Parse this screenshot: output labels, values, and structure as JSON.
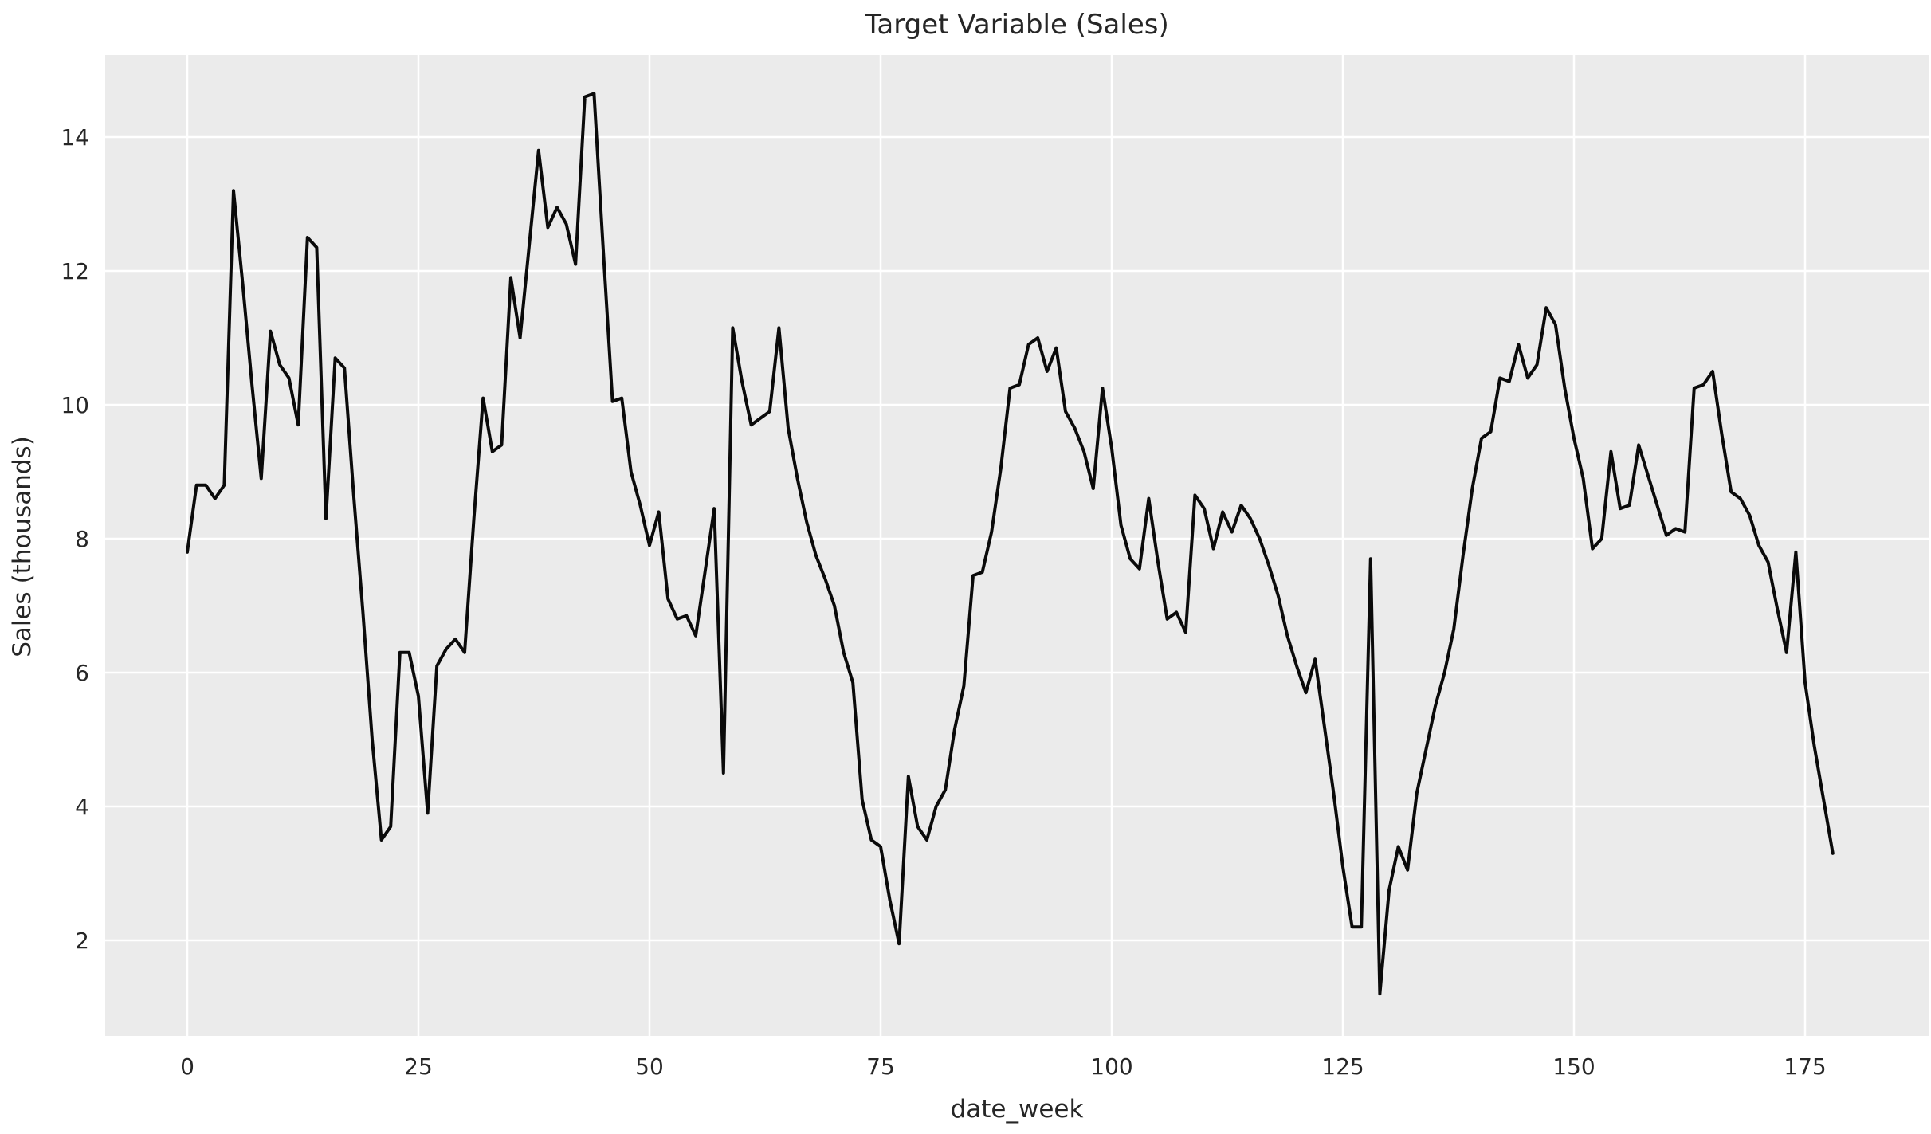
{
  "chart_data": {
    "type": "line",
    "title": "Target Variable (Sales)",
    "xlabel": "date_week",
    "ylabel": "Sales (thousands)",
    "legend": null,
    "grid": true,
    "style": "seaborn-darkgrid",
    "colors": {
      "page_background": "#ffffff",
      "plot_background": "#ebebeb",
      "gridline": "#ffffff",
      "line": "#0a0a0a",
      "text": "#262626"
    },
    "xlim": [
      -8.9,
      186.9
    ],
    "ylim": [
      0.55,
      15.3
    ],
    "xticks": [
      0,
      25,
      50,
      75,
      100,
      125,
      150,
      175
    ],
    "yticks": [
      2,
      4,
      6,
      8,
      10,
      12,
      14
    ],
    "x": [
      0,
      1,
      2,
      3,
      4,
      5,
      6,
      7,
      8,
      9,
      10,
      11,
      12,
      13,
      14,
      15,
      16,
      17,
      18,
      19,
      20,
      21,
      22,
      23,
      24,
      25,
      26,
      27,
      28,
      29,
      30,
      31,
      32,
      33,
      34,
      35,
      36,
      37,
      38,
      39,
      40,
      41,
      42,
      43,
      44,
      45,
      46,
      47,
      48,
      49,
      50,
      51,
      52,
      53,
      54,
      55,
      56,
      57,
      58,
      59,
      60,
      61,
      62,
      63,
      64,
      65,
      66,
      67,
      68,
      69,
      70,
      71,
      72,
      73,
      74,
      75,
      76,
      77,
      78,
      79,
      80,
      81,
      82,
      83,
      84,
      85,
      86,
      87,
      88,
      89,
      90,
      91,
      92,
      93,
      94,
      95,
      96,
      97,
      98,
      99,
      100,
      101,
      102,
      103,
      104,
      105,
      106,
      107,
      108,
      109,
      110,
      111,
      112,
      113,
      114,
      115,
      116,
      117,
      118,
      119,
      120,
      121,
      122,
      123,
      124,
      125,
      126,
      127,
      128,
      129,
      130,
      131,
      132,
      133,
      134,
      135,
      136,
      137,
      138,
      139,
      140,
      141,
      142,
      143,
      144,
      145,
      146,
      147,
      148,
      149,
      150,
      151,
      152,
      153,
      154,
      155,
      156,
      157,
      158,
      159,
      160,
      161,
      162,
      163,
      164,
      165,
      166,
      167,
      168,
      169,
      170,
      171,
      172,
      173,
      174,
      175,
      176,
      177,
      178
    ],
    "values": [
      7.8,
      8.8,
      8.8,
      8.6,
      8.8,
      13.2,
      11.8,
      10.3,
      8.9,
      11.1,
      10.6,
      10.4,
      9.7,
      12.5,
      12.35,
      8.3,
      10.7,
      10.55,
      8.65,
      6.9,
      5.0,
      3.5,
      3.7,
      6.3,
      6.3,
      5.65,
      3.9,
      6.1,
      6.35,
      6.5,
      6.3,
      8.3,
      10.1,
      9.3,
      9.4,
      11.9,
      11.0,
      12.4,
      13.8,
      12.65,
      12.95,
      12.7,
      12.1,
      14.6,
      14.65,
      12.3,
      10.05,
      10.1,
      9.0,
      8.5,
      7.9,
      8.4,
      7.1,
      6.8,
      6.85,
      6.55,
      7.5,
      8.45,
      4.5,
      11.15,
      10.35,
      9.7,
      9.8,
      9.9,
      11.15,
      9.65,
      8.9,
      8.25,
      7.75,
      7.4,
      7.0,
      6.3,
      5.85,
      4.1,
      3.5,
      3.4,
      2.6,
      1.95,
      4.45,
      3.7,
      3.5,
      4.0,
      4.25,
      5.15,
      5.8,
      7.45,
      7.5,
      8.1,
      9.05,
      10.25,
      10.3,
      10.9,
      11.0,
      10.5,
      10.85,
      9.9,
      9.65,
      9.3,
      8.75,
      10.25,
      9.35,
      8.2,
      7.7,
      7.55,
      8.6,
      7.65,
      6.8,
      6.9,
      6.6,
      8.65,
      8.45,
      7.85,
      8.4,
      8.1,
      8.5,
      8.3,
      8.0,
      7.6,
      7.15,
      6.55,
      6.1,
      5.7,
      6.2,
      5.2,
      4.2,
      3.1,
      2.2,
      2.2,
      7.7,
      1.2,
      2.75,
      3.4,
      3.05,
      4.2,
      4.85,
      5.5,
      6.0,
      6.65,
      7.75,
      8.75,
      9.5,
      9.6,
      10.4,
      10.35,
      10.9,
      10.4,
      10.6,
      11.45,
      11.2,
      10.25,
      9.5,
      8.9,
      7.85,
      8.0,
      9.3,
      8.45,
      8.5,
      9.4,
      8.95,
      8.5,
      8.05,
      8.15,
      8.1,
      10.25,
      10.3,
      10.5,
      9.55,
      8.7,
      8.6,
      8.35,
      7.9,
      7.65,
      6.95,
      6.3,
      7.8,
      5.85,
      4.9,
      4.1,
      3.3
    ]
  }
}
